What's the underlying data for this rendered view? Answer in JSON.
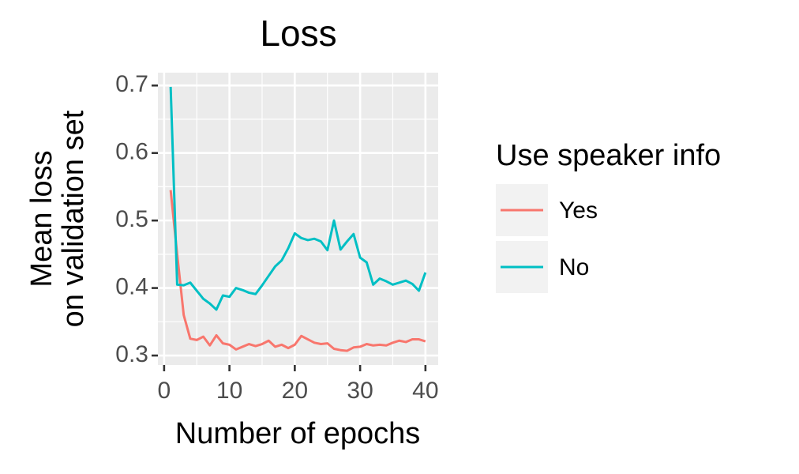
{
  "chart_data": {
    "type": "line",
    "title": "Loss",
    "x_label": "Number of epochs",
    "y_label": [
      "Mean loss",
      "on validation set"
    ],
    "legend_title": "Use speaker info",
    "legend": "right",
    "x": [
      1,
      2,
      3,
      4,
      5,
      6,
      7,
      8,
      9,
      10,
      11,
      12,
      13,
      14,
      15,
      16,
      17,
      18,
      19,
      20,
      21,
      22,
      23,
      24,
      25,
      26,
      27,
      28,
      29,
      30,
      31,
      32,
      33,
      34,
      35,
      36,
      37,
      38,
      39,
      40
    ],
    "series": [
      {
        "name": "Yes",
        "color": "#F8766D",
        "values": [
          0.545,
          0.45,
          0.36,
          0.325,
          0.323,
          0.328,
          0.315,
          0.33,
          0.318,
          0.316,
          0.309,
          0.313,
          0.317,
          0.314,
          0.317,
          0.322,
          0.313,
          0.316,
          0.311,
          0.316,
          0.329,
          0.324,
          0.319,
          0.317,
          0.318,
          0.31,
          0.308,
          0.307,
          0.312,
          0.313,
          0.317,
          0.315,
          0.316,
          0.315,
          0.319,
          0.322,
          0.32,
          0.324,
          0.324,
          0.321
        ]
      },
      {
        "name": "No",
        "color": "#00BFC4",
        "values": [
          0.698,
          0.405,
          0.404,
          0.408,
          0.396,
          0.384,
          0.377,
          0.368,
          0.389,
          0.387,
          0.4,
          0.397,
          0.393,
          0.391,
          0.404,
          0.418,
          0.432,
          0.441,
          0.459,
          0.481,
          0.474,
          0.471,
          0.473,
          0.469,
          0.456,
          0.5,
          0.457,
          0.469,
          0.48,
          0.445,
          0.438,
          0.405,
          0.414,
          0.41,
          0.405,
          0.408,
          0.411,
          0.406,
          0.396,
          0.423
        ]
      }
    ],
    "xlim": [
      -0.95,
      41.95
    ],
    "xticks": [
      0,
      10,
      20,
      30,
      40
    ],
    "xminor": [
      5,
      15,
      25,
      35
    ],
    "ylim": [
      0.286,
      0.719
    ],
    "yticks": [
      0.3,
      0.4,
      0.5,
      0.6,
      0.7
    ],
    "yminor": [
      0.35,
      0.45,
      0.55,
      0.65
    ],
    "grid": true
  }
}
